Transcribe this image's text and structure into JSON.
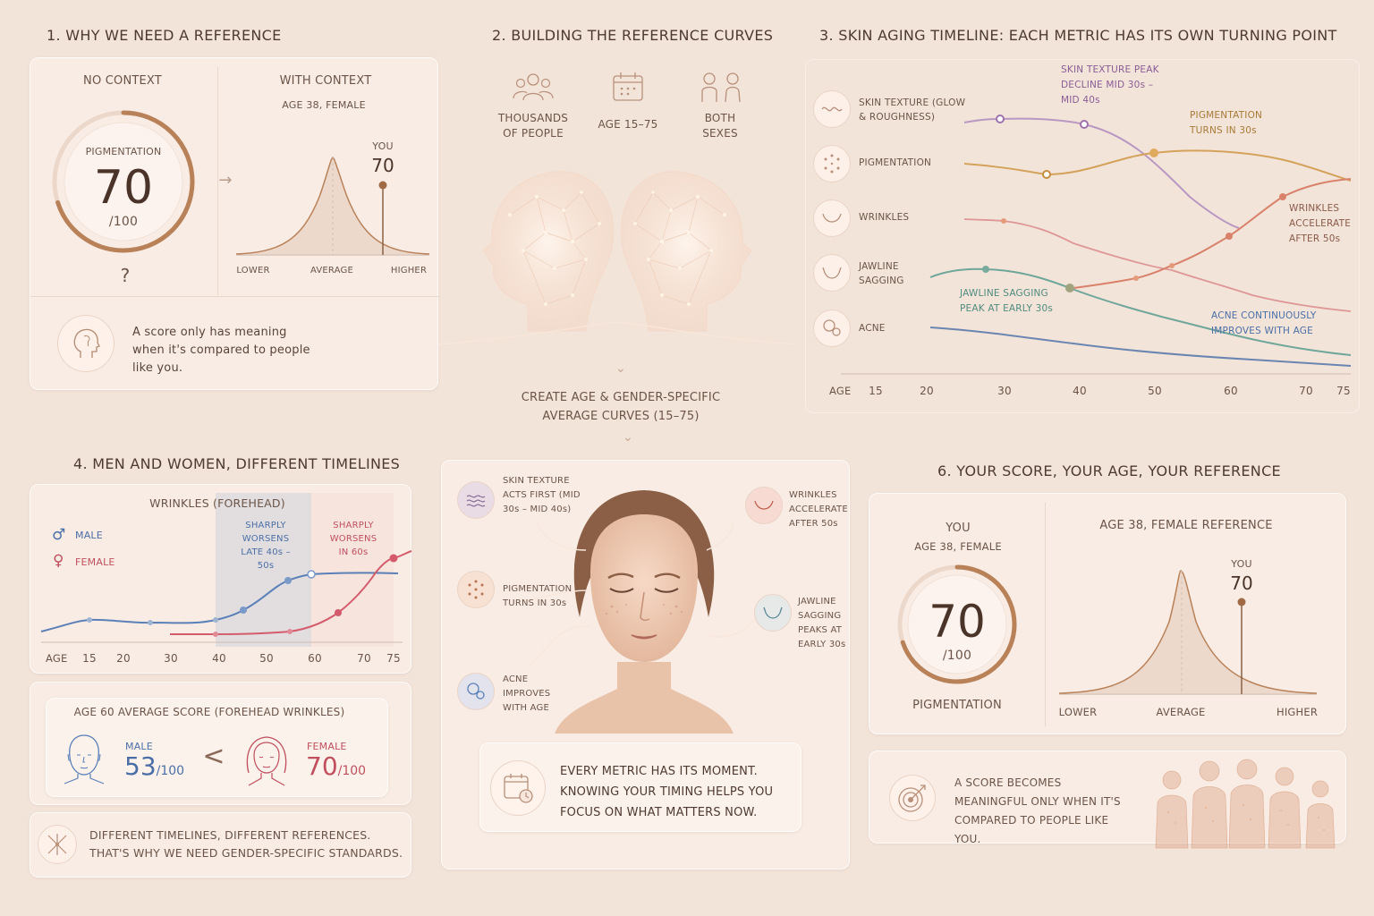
{
  "sec1": {
    "title": "1. WHY WE NEED A REFERENCE",
    "no_context": "NO CONTEXT",
    "with_context": "WITH CONTEXT",
    "age_label": "AGE 38, FEMALE",
    "gauge_label": "PIGMENTATION",
    "score": "70",
    "score_max": "/100",
    "question": "?",
    "you": "YOU",
    "you_score": "70",
    "lower": "LOWER",
    "average": "AVERAGE",
    "higher": "HIGHER",
    "note": "A score only has meaning when it's compared to people like you."
  },
  "sec2": {
    "title": "2. BUILDING THE REFERENCE CURVES",
    "item1": "THOUSANDS OF PEOPLE",
    "item2": "AGE 15–75",
    "item3": "BOTH SEXES",
    "create": "CREATE AGE & GENDER-SPECIFIC AVERAGE CURVES (15–75)"
  },
  "sec3": {
    "title": "3. SKIN  AGING TIMELINE: EACH METRIC HAS ITS OWN TURNING POINT",
    "rows": [
      "SKIN TEXTURE (GLOW & ROUGHNESS)",
      "PIGMENTATION",
      "WRINKLES",
      "JAWLINE SAGGING",
      "ACNE"
    ],
    "ann_texture": "SKIN TEXTURE PEAK DECLINE MID 30s – MID 40s",
    "ann_pigment": "PIGMENTATION TURNS IN 30s",
    "ann_wrinkles": "WRINKLES ACCELERATE AFTER 50s",
    "ann_jawline": "JAWLINE SAGGING PEAK AT EARLY 30s",
    "ann_acne": "ACNE CONTINUOUSLY IMPROVES WITH AGE",
    "axis_label": "AGE",
    "ticks": [
      "15",
      "20",
      "30",
      "40",
      "50",
      "60",
      "70",
      "75"
    ],
    "colors": {
      "texture": "#a886b4",
      "pigment": "#d4a25a",
      "wrinkles": "#d98a6e",
      "jawline": "#6fa69a",
      "acne": "#6a86b0"
    }
  },
  "sec4": {
    "title": "4. MEN AND WOMEN, DIFFERENT TIMELINES",
    "chart_title": "WRINKLES (FOREHEAD)",
    "male": "MALE",
    "female": "FEMALE",
    "male_note": "SHARPLY WORSENS LATE 40s – 50s",
    "female_note": "SHARPLY WORSENS IN 60s",
    "axis_label": "AGE",
    "ticks": [
      "15",
      "20",
      "30",
      "40",
      "50",
      "60",
      "70",
      "75"
    ],
    "avg_title": "AGE 60 AVERAGE SCORE (FOREHEAD WRINKLES)",
    "male_label": "MALE",
    "male_score": "53",
    "female_label": "FEMALE",
    "female_score": "70",
    "score_max": "/100",
    "less_than": "<",
    "note_line1": "DIFFERENT TIMELINES, DIFFERENT REFERENCES.",
    "note_line2": "THAT'S WHY WE NEED GENDER-SPECIFIC STANDARDS."
  },
  "sec5": {
    "texture": "SKIN TEXTURE ACTS FIRST (MID 30s – MID 40s)",
    "pigment": "PIGMENTATION TURNS IN 30s",
    "acne": "ACNE IMPROVES WITH AGE",
    "wrinkles": "WRINKLES ACCELERATE AFTER 50s",
    "jawline": "JAWLINE SAGGING PEAKS AT EARLY 30s",
    "note": "EVERY METRIC HAS ITS MOMENT. KNOWING YOUR TIMING HELPS YOU FOCUS ON WHAT MATTERS NOW."
  },
  "sec6": {
    "title": "6. YOUR SCORE, YOUR AGE, YOUR REFERENCE",
    "you": "YOU",
    "age": "AGE 38, FEMALE",
    "score": "70",
    "score_max": "/100",
    "metric": "PIGMENTATION",
    "ref_title": "AGE 38, FEMALE REFERENCE",
    "you2": "YOU",
    "you_score": "70",
    "lower": "LOWER",
    "average": "AVERAGE",
    "higher": "HIGHER",
    "note": "A SCORE BECOMES MEANINGFUL ONLY WHEN IT'S COMPARED TO PEOPLE LIKE YOU."
  }
}
